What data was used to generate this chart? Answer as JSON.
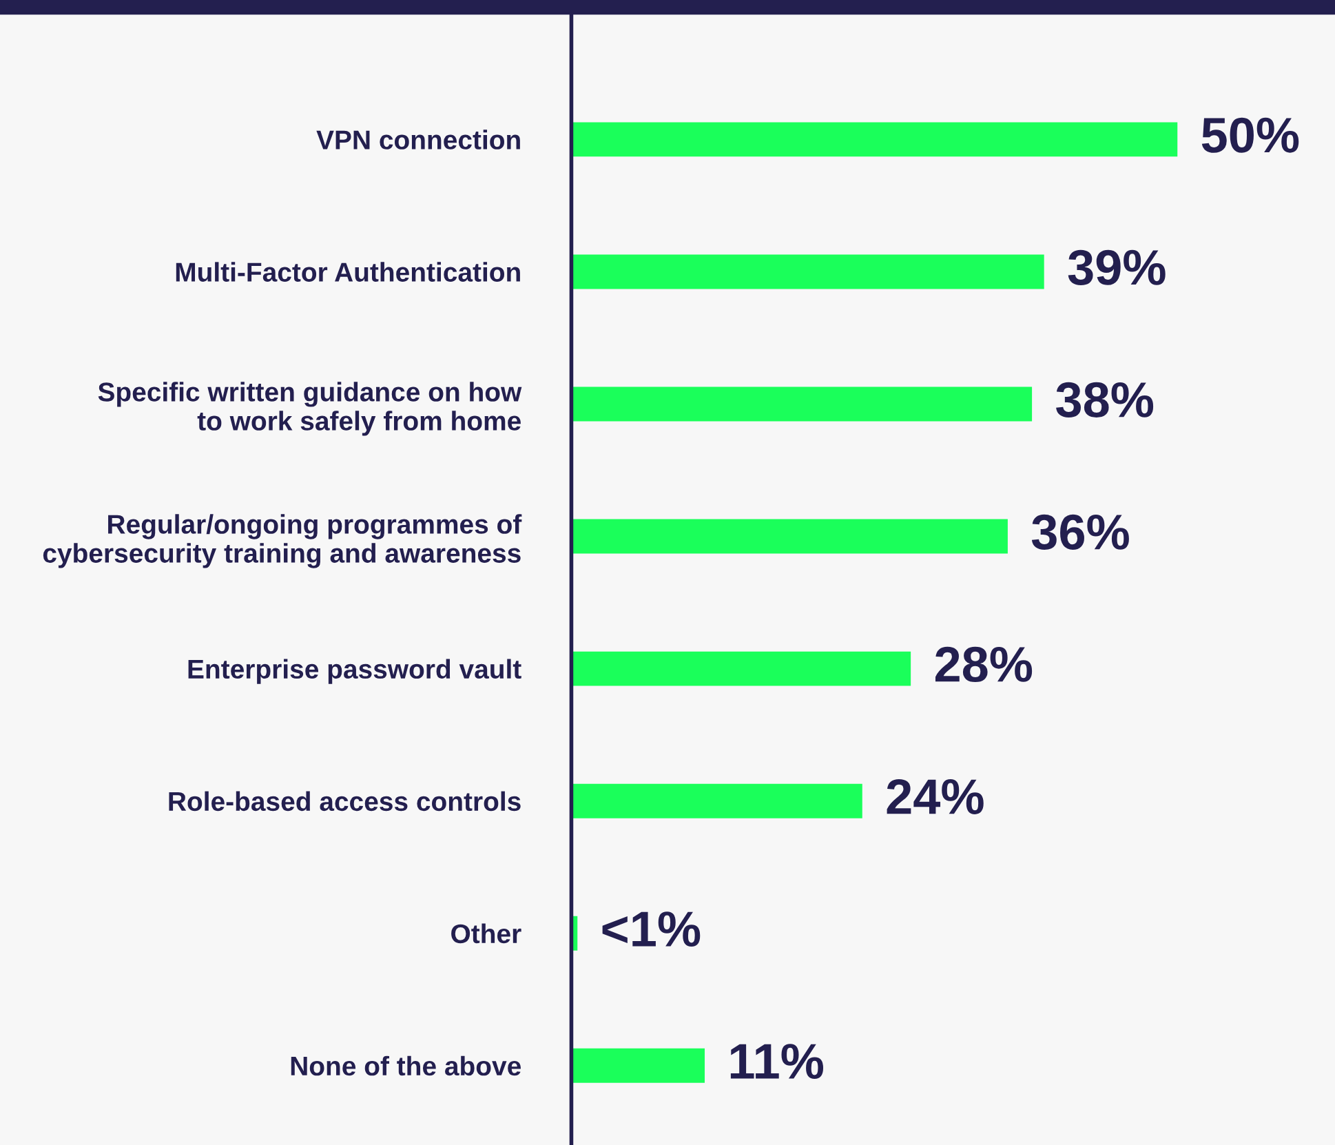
{
  "chart_data": {
    "type": "bar",
    "orientation": "horizontal",
    "categories": [
      "VPN connection",
      "Multi-Factor Authentication",
      "Specific written guidance on how\nto work safely from home",
      "Regular/ongoing programmes of\ncybersecurity training and awareness",
      "Enterprise password vault",
      "Role-based access controls",
      "Other",
      "None of the above"
    ],
    "values": [
      50,
      39,
      38,
      36,
      28,
      24,
      0.5,
      11
    ],
    "value_labels": [
      "50%",
      "39%",
      "38%",
      "36%",
      "28%",
      "24%",
      "<1%",
      "11%"
    ],
    "color": "#1aff5a",
    "xlim": [
      0,
      63
    ],
    "tick_labels": "y",
    "grid": false,
    "legend": false
  }
}
